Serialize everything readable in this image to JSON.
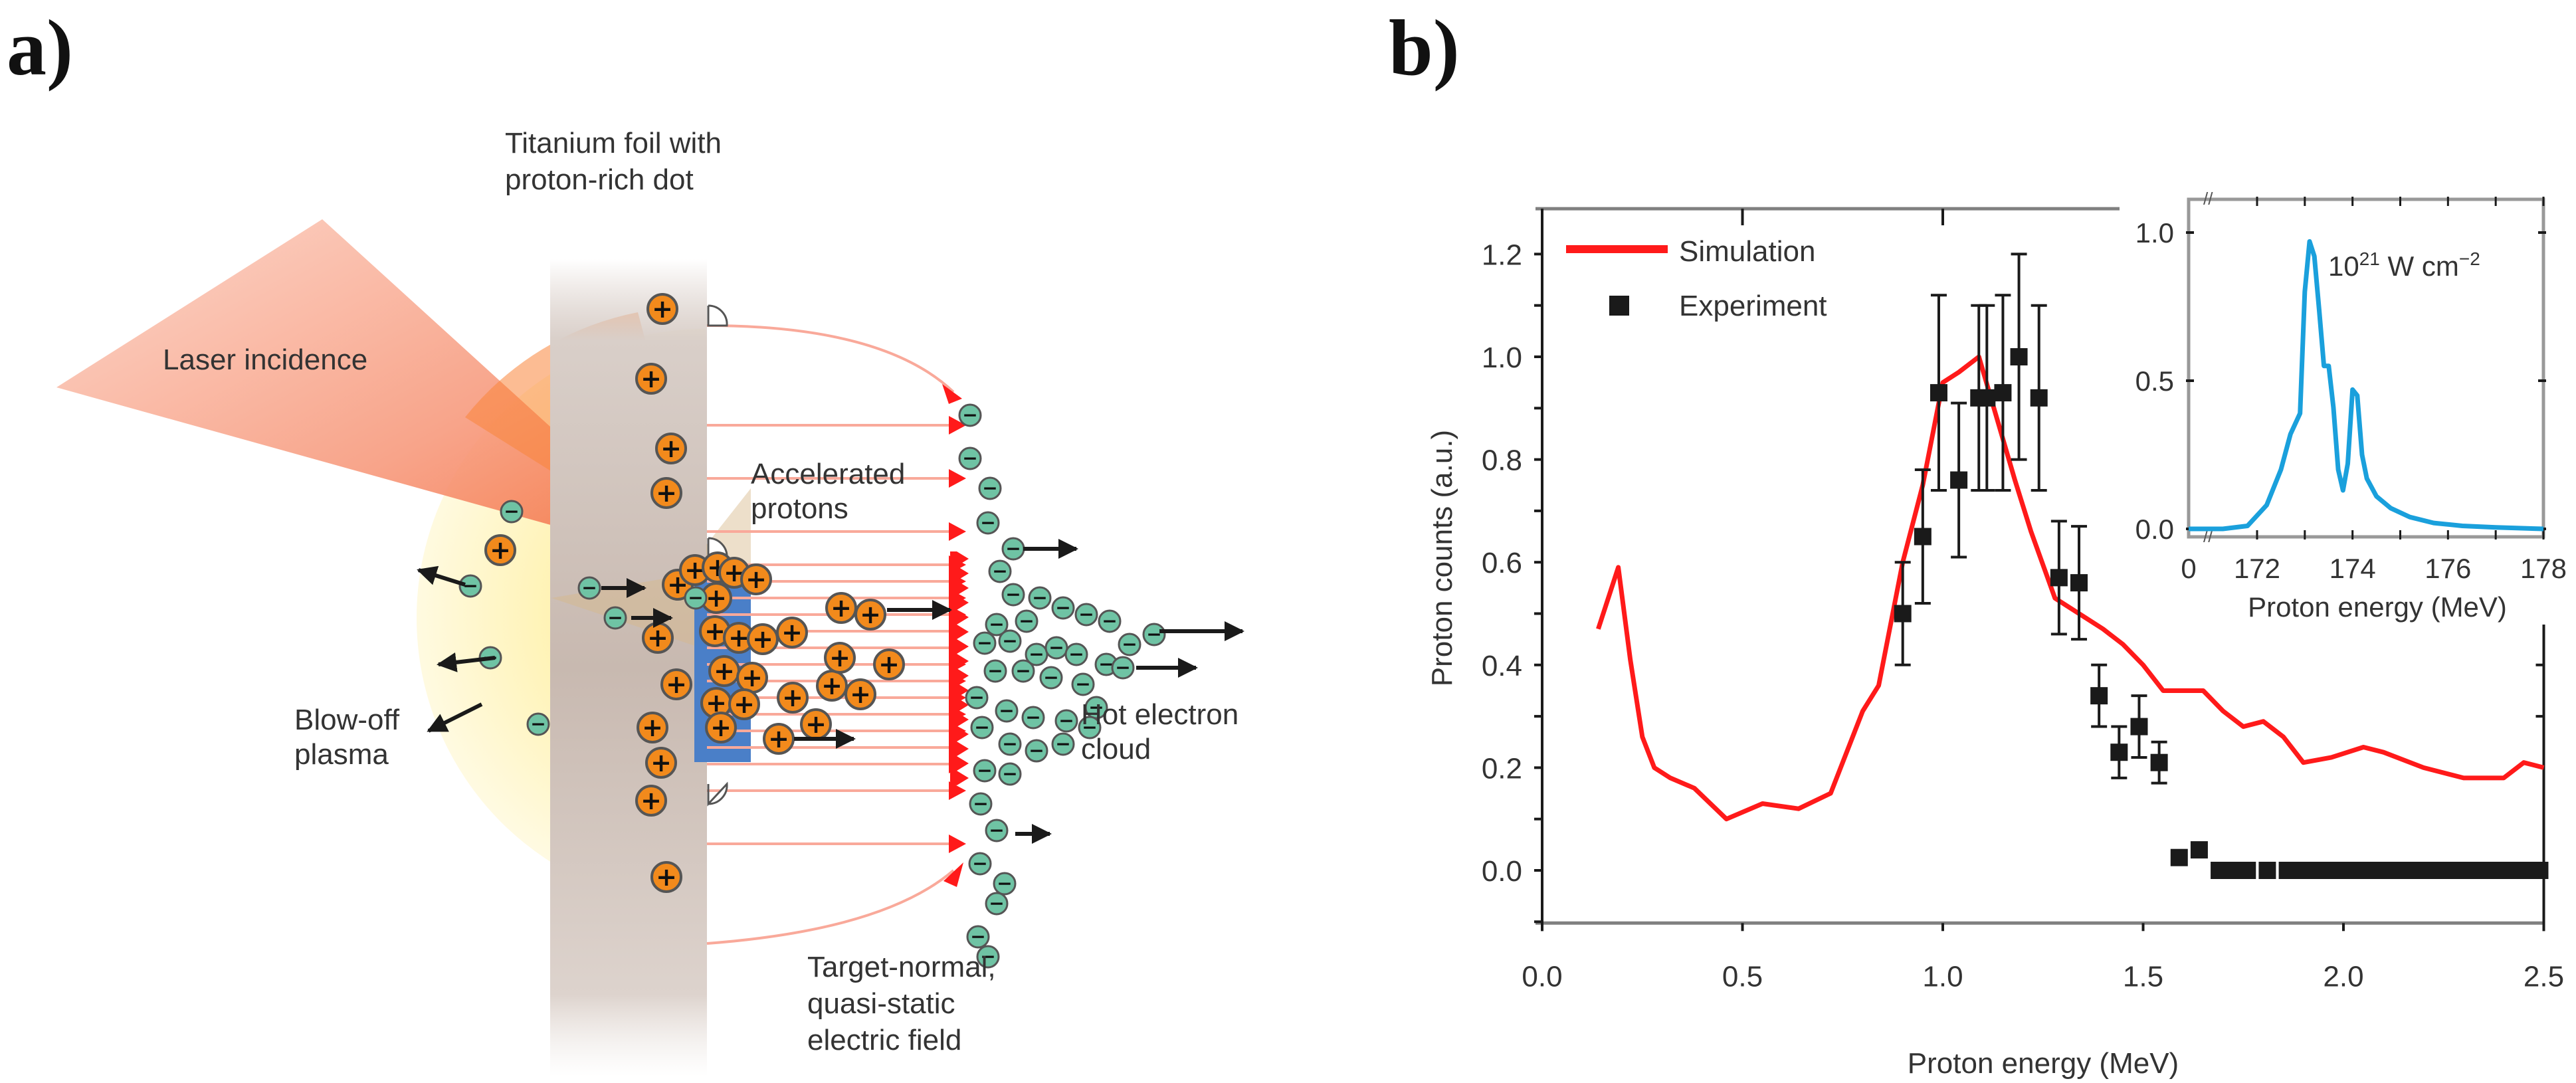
{
  "panels": {
    "a": {
      "label": "a)",
      "labels": {
        "laser": "Laser incidence",
        "foil_line1": "Titanium foil with",
        "foil_line2": "proton-rich dot",
        "accel_line1": "Accelerated",
        "accel_line2": "protons",
        "plasma_line1": "Blow-off",
        "plasma_line2": "plasma",
        "hot_line1": "Hot electron",
        "hot_line2": "cloud",
        "field_line1": "Target-normal,",
        "field_line2": "quasi-static",
        "field_line3": "electric field"
      },
      "particle_symbols": {
        "proton": "+",
        "electron": "−"
      },
      "colors": {
        "proton": "#f28a1c",
        "electron": "#6fc3a4",
        "foil": "#cfc1b9",
        "dot": "#4a7fc8",
        "laser": "#f57a55",
        "plasma": "#fff3b0",
        "field": "#f9a99a",
        "field_arrow": "#ff1a1a"
      }
    },
    "b": {
      "label": "b)"
    }
  },
  "chart_data": [
    {
      "type": "line",
      "title": "",
      "xlabel": "Proton energy (MeV)",
      "ylabel": "Proton counts (a.u.)",
      "xlim": [
        0.0,
        2.5
      ],
      "ylim": [
        -0.1,
        1.3
      ],
      "xticks": [
        "0.0",
        "0.5",
        "1.0",
        "1.5",
        "2.0",
        "2.5"
      ],
      "xtick_values": [
        0.0,
        0.5,
        1.0,
        1.5,
        2.0,
        2.5
      ],
      "yticks": [
        "0.0",
        "0.2",
        "0.4",
        "0.6",
        "0.8",
        "1.0",
        "1.2"
      ],
      "ytick_values": [
        0.0,
        0.2,
        0.4,
        0.6,
        0.8,
        1.0,
        1.2
      ],
      "grid": false,
      "legend": {
        "placement": "top-left",
        "entries": [
          "Simulation",
          "Experiment"
        ]
      },
      "series": [
        {
          "name": "Simulation",
          "kind": "line",
          "color": "#ff1a1a",
          "x": [
            0.14,
            0.19,
            0.22,
            0.25,
            0.28,
            0.32,
            0.38,
            0.46,
            0.55,
            0.64,
            0.72,
            0.8,
            0.84,
            0.9,
            0.95,
            1.0,
            1.04,
            1.09,
            1.12,
            1.18,
            1.22,
            1.28,
            1.34,
            1.4,
            1.45,
            1.5,
            1.55,
            1.6,
            1.65,
            1.7,
            1.75,
            1.8,
            1.85,
            1.9,
            1.97,
            2.05,
            2.1,
            2.2,
            2.3,
            2.4,
            2.45,
            2.5
          ],
          "y": [
            0.47,
            0.59,
            0.41,
            0.26,
            0.2,
            0.18,
            0.16,
            0.1,
            0.13,
            0.12,
            0.15,
            0.31,
            0.36,
            0.6,
            0.75,
            0.95,
            0.97,
            1.0,
            0.92,
            0.76,
            0.66,
            0.53,
            0.5,
            0.47,
            0.44,
            0.4,
            0.35,
            0.35,
            0.35,
            0.31,
            0.28,
            0.29,
            0.26,
            0.21,
            0.22,
            0.24,
            0.23,
            0.2,
            0.18,
            0.18,
            0.21,
            0.2
          ]
        },
        {
          "name": "Experiment",
          "kind": "scatter",
          "marker": "square",
          "color": "#1a1a1a",
          "x": [
            0.9,
            0.95,
            0.99,
            1.04,
            1.09,
            1.11,
            1.15,
            1.19,
            1.24,
            1.29,
            1.34,
            1.39,
            1.44,
            1.49,
            1.54,
            1.59,
            1.64,
            1.69,
            1.72,
            1.76,
            1.81,
            1.86,
            1.9,
            1.93,
            1.97,
            2.01,
            2.05,
            2.09,
            2.13,
            2.17,
            2.21,
            2.25,
            2.29,
            2.33,
            2.37,
            2.41,
            2.45,
            2.49
          ],
          "y": [
            0.5,
            0.65,
            0.93,
            0.76,
            0.92,
            0.92,
            0.93,
            1.0,
            0.92,
            0.57,
            0.56,
            0.34,
            0.23,
            0.28,
            0.21,
            0.025,
            0.04,
            0.0,
            0.0,
            0.0,
            0.0,
            0.0,
            0.0,
            0.0,
            0.0,
            0.0,
            0.0,
            0.0,
            0.0,
            0.0,
            0.0,
            0.0,
            0.0,
            0.0,
            0.0,
            0.0,
            0.0,
            0.0
          ],
          "yerr": [
            0.1,
            0.13,
            0.19,
            0.15,
            0.18,
            0.18,
            0.19,
            0.2,
            0.18,
            0.11,
            0.11,
            0.06,
            0.05,
            0.06,
            0.04,
            0,
            0,
            0,
            0,
            0,
            0,
            0,
            0,
            0,
            0,
            0,
            0,
            0,
            0,
            0,
            0,
            0,
            0,
            0,
            0,
            0,
            0,
            0
          ]
        }
      ]
    },
    {
      "type": "line",
      "title": "",
      "annotation_base": "10",
      "annotation_exp": "21",
      "annotation_unit": " W cm",
      "annotation_unit_exp": "−2",
      "xlabel": "Proton energy (MeV)",
      "ylabel": "",
      "xlim": [
        171,
        178
      ],
      "x_break": true,
      "ylim": [
        0.0,
        1.1
      ],
      "xticks": [
        "0",
        "172",
        "174",
        "176",
        "178"
      ],
      "xtick_values": [
        171,
        172,
        174,
        176,
        178
      ],
      "yticks": [
        "0.0",
        "0.5",
        "1.0"
      ],
      "ytick_values": [
        0.0,
        0.5,
        1.0
      ],
      "grid": false,
      "series": [
        {
          "name": "10^21 W cm^-2",
          "kind": "line",
          "color": "#1aa0dc",
          "x": [
            171.0,
            171.5,
            171.8,
            172.2,
            172.5,
            172.7,
            172.9,
            173.0,
            173.1,
            173.2,
            173.3,
            173.4,
            173.5,
            173.6,
            173.7,
            173.8,
            173.9,
            174.0,
            174.1,
            174.2,
            174.3,
            174.5,
            174.8,
            175.2,
            175.7,
            176.3,
            177.0,
            178.0
          ],
          "y": [
            0.0,
            0.0,
            0.01,
            0.08,
            0.2,
            0.32,
            0.39,
            0.8,
            0.97,
            0.92,
            0.74,
            0.55,
            0.55,
            0.41,
            0.2,
            0.13,
            0.22,
            0.47,
            0.45,
            0.25,
            0.17,
            0.11,
            0.07,
            0.04,
            0.02,
            0.01,
            0.005,
            0.0
          ]
        }
      ]
    }
  ]
}
